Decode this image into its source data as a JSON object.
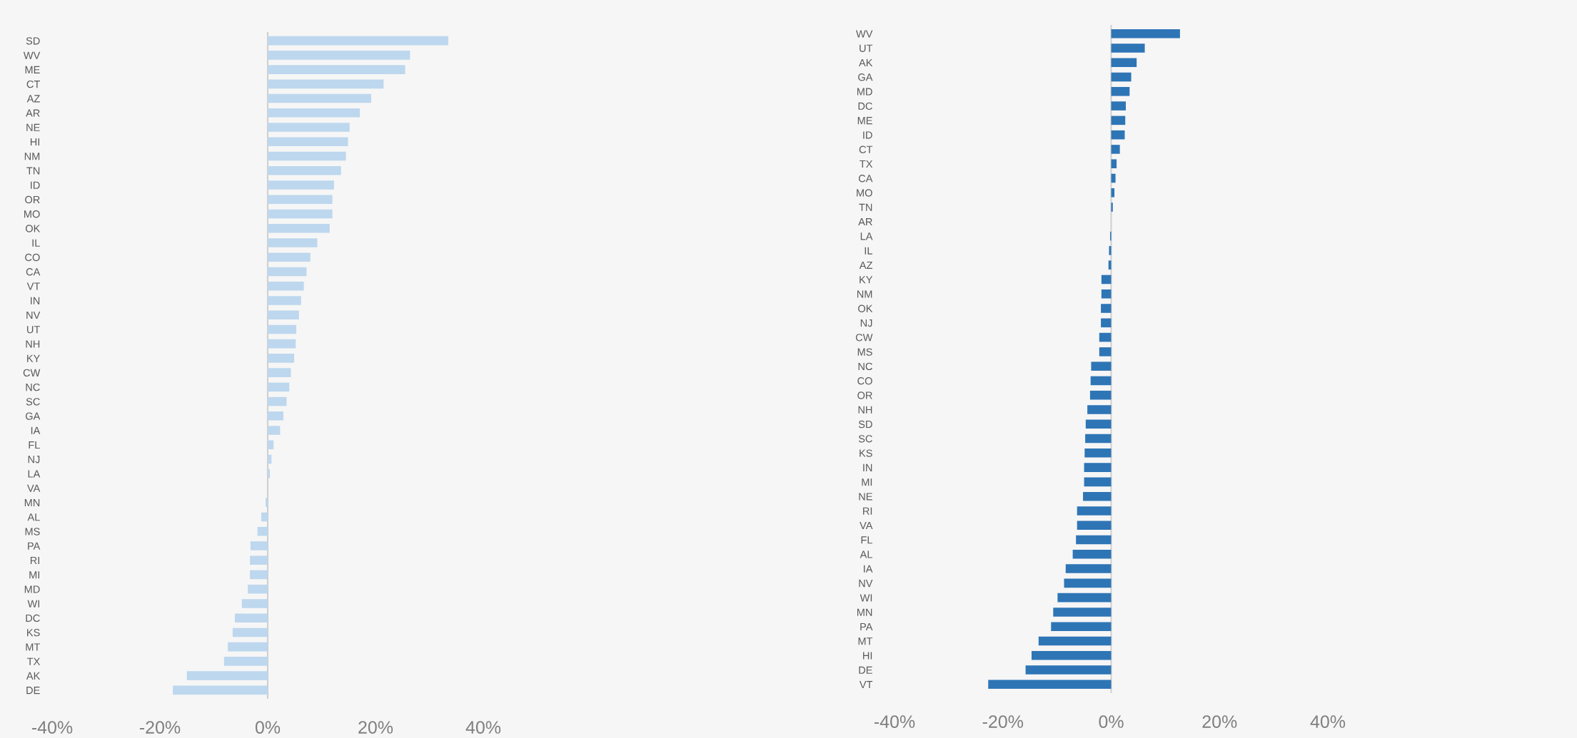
{
  "chart_data": [
    {
      "type": "bar",
      "orientation": "horizontal",
      "color": "#bdd7ee",
      "categories": [
        "SD",
        "WV",
        "ME",
        "CT",
        "AZ",
        "AR",
        "NE",
        "HI",
        "NM",
        "TN",
        "ID",
        "OR",
        "MO",
        "OK",
        "IL",
        "CO",
        "CA",
        "VT",
        "IN",
        "NV",
        "UT",
        "NH",
        "KY",
        "CW",
        "NC",
        "SC",
        "GA",
        "IA",
        "FL",
        "NJ",
        "LA",
        "VA",
        "MN",
        "AL",
        "MS",
        "PA",
        "RI",
        "MI",
        "MD",
        "WI",
        "DC",
        "KS",
        "MT",
        "TX",
        "AK",
        "DE"
      ],
      "values": [
        33.5,
        26.4,
        25.5,
        21.5,
        19.2,
        17.1,
        15.2,
        14.9,
        14.5,
        13.6,
        12.3,
        12.0,
        12.0,
        11.5,
        9.2,
        7.9,
        7.2,
        6.7,
        6.2,
        5.8,
        5.3,
        5.2,
        4.9,
        4.3,
        4.0,
        3.5,
        2.9,
        2.3,
        1.1,
        0.7,
        0.4,
        0,
        -0.4,
        -1.2,
        -1.9,
        -3.2,
        -3.3,
        -3.3,
        -3.7,
        -4.8,
        -6.1,
        -6.5,
        -7.4,
        -8.1,
        -15.0,
        -17.6
      ],
      "xlim": [
        -40,
        40
      ],
      "xticks": [
        {
          "value": -40,
          "label": "-40%"
        },
        {
          "value": -20,
          "label": "-20%"
        },
        {
          "value": 0,
          "label": "0%"
        },
        {
          "value": 20,
          "label": "20%"
        },
        {
          "value": 40,
          "label": "40%"
        }
      ],
      "ref_lines": [
        {
          "axis": "x",
          "value": 0,
          "color": "#d0d0d0"
        }
      ],
      "grid": false
    },
    {
      "type": "bar",
      "orientation": "horizontal",
      "color": "#2e75b6",
      "categories": [
        "WV",
        "UT",
        "AK",
        "GA",
        "MD",
        "DC",
        "ME",
        "ID",
        "CT",
        "TX",
        "CA",
        "MO",
        "TN",
        "AR",
        "LA",
        "IL",
        "AZ",
        "KY",
        "NM",
        "OK",
        "NJ",
        "CW",
        "MS",
        "NC",
        "CO",
        "OR",
        "NH",
        "SD",
        "SC",
        "KS",
        "IN",
        "MI",
        "NE",
        "RI",
        "VA",
        "FL",
        "AL",
        "IA",
        "NV",
        "WI",
        "MN",
        "PA",
        "MT",
        "HI",
        "DE",
        "VT"
      ],
      "values": [
        12.7,
        6.2,
        4.7,
        3.7,
        3.4,
        2.7,
        2.6,
        2.5,
        1.6,
        1.0,
        0.8,
        0.6,
        0.3,
        0,
        -0.2,
        -0.4,
        -0.5,
        -1.8,
        -1.8,
        -1.9,
        -1.9,
        -2.2,
        -2.2,
        -3.7,
        -3.8,
        -3.9,
        -4.4,
        -4.7,
        -4.8,
        -4.9,
        -5.0,
        -5.0,
        -5.2,
        -6.3,
        -6.3,
        -6.5,
        -7.1,
        -8.4,
        -8.7,
        -9.9,
        -10.7,
        -11.1,
        -13.4,
        -14.7,
        -15.8,
        -22.7
      ],
      "xlim": [
        -40,
        40
      ],
      "xticks": [
        {
          "value": -40,
          "label": "-40%"
        },
        {
          "value": -20,
          "label": "-20%"
        },
        {
          "value": 0,
          "label": "0%"
        },
        {
          "value": 20,
          "label": "20%"
        },
        {
          "value": 40,
          "label": "40%"
        }
      ],
      "ref_lines": [
        {
          "axis": "x",
          "value": 0,
          "color": "#d0d0d0"
        }
      ],
      "grid": false
    }
  ]
}
